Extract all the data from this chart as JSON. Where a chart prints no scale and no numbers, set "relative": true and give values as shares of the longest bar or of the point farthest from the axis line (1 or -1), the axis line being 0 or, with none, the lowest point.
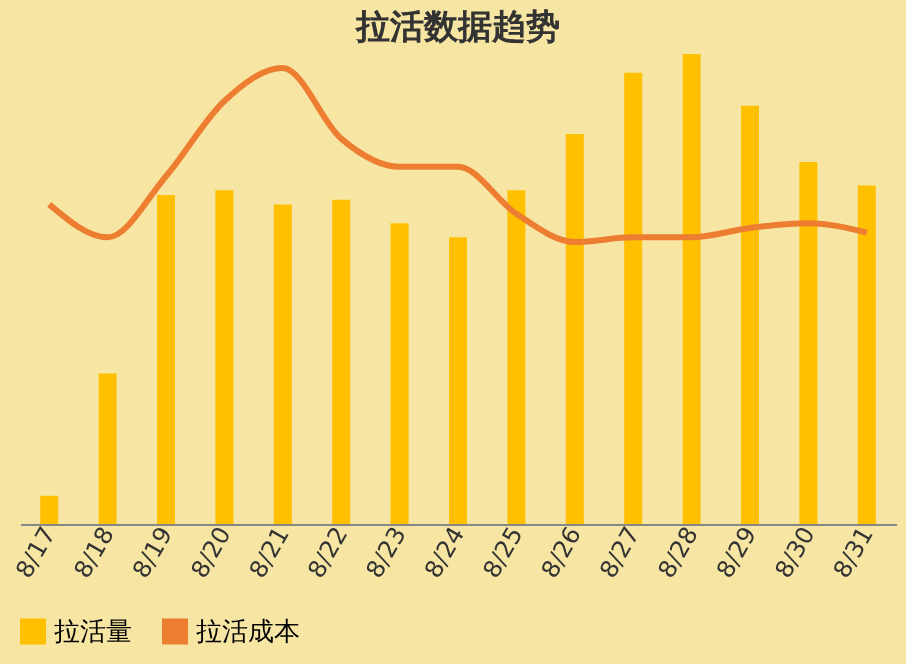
{
  "chart_data": {
    "type": "bar",
    "title": "拉活数据趋势",
    "relative": true,
    "categories": [
      "8/17",
      "8/18",
      "8/19",
      "8/20",
      "8/21",
      "8/22",
      "8/23",
      "8/24",
      "8/25",
      "8/26",
      "8/27",
      "8/28",
      "8/29",
      "8/30",
      "8/31"
    ],
    "series": [
      {
        "name": "拉活量",
        "color": "#ffc000",
        "values": [
          0.06,
          0.32,
          0.7,
          0.71,
          0.68,
          0.69,
          0.64,
          0.61,
          0.71,
          0.83,
          0.96,
          1,
          0.89,
          0.77,
          0.72
        ]
      },
      {
        "name": "拉活成本",
        "type": "line",
        "color": "#ed7d31",
        "values": [
          0.68,
          0.61,
          0.74,
          0.9,
          0.97,
          0.82,
          0.76,
          0.76,
          0.66,
          0.6,
          0.61,
          0.61,
          0.63,
          0.64,
          0.62
        ]
      }
    ],
    "legend": "bottom",
    "grid": false,
    "marker": "none",
    "line_style": "solid"
  }
}
